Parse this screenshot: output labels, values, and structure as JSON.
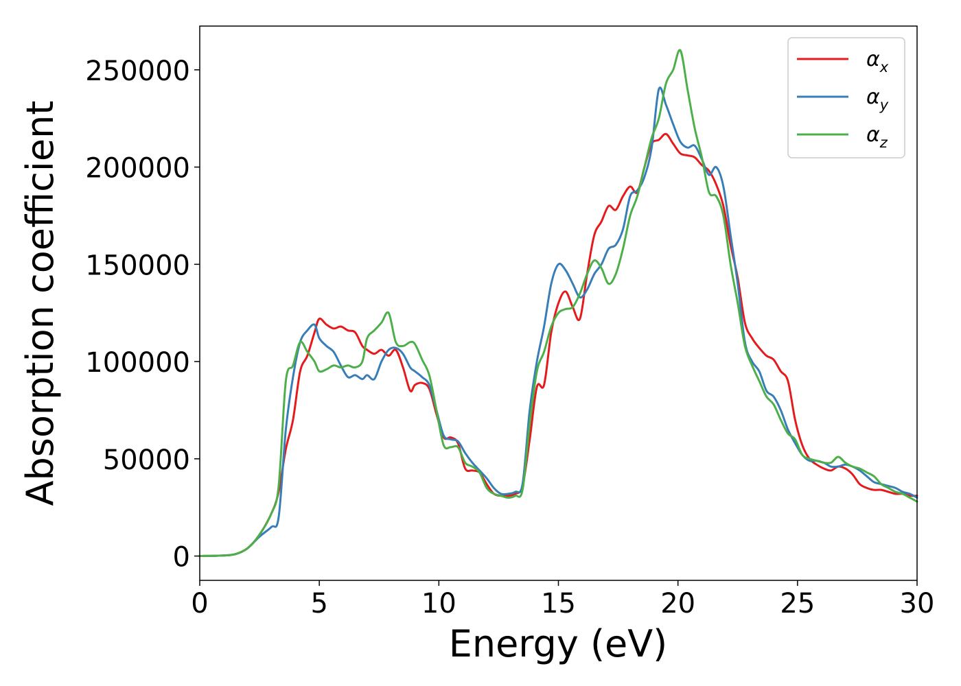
{
  "chart_data": {
    "type": "line",
    "xlabel": "Energy (eV)",
    "ylabel": "Absorption coefficient",
    "xlim": [
      0,
      30
    ],
    "ylim": [
      -12500,
      272500
    ],
    "xticks": [
      0,
      5,
      10,
      15,
      20,
      25,
      30
    ],
    "yticks": [
      0,
      50000,
      100000,
      150000,
      200000,
      250000
    ],
    "xtick_labels": [
      "0",
      "5",
      "10",
      "15",
      "20",
      "25",
      "30"
    ],
    "ytick_labels": [
      "0",
      "50000",
      "100000",
      "150000",
      "200000",
      "250000"
    ],
    "grid": false,
    "legend_position": "top-right",
    "series": [
      {
        "name": "α",
        "subscript": "x",
        "color": "#e41a1c",
        "x": [
          0,
          1,
          1.5,
          2,
          2.5,
          3,
          3.3,
          3.6,
          3.9,
          4.2,
          4.5,
          4.8,
          5.0,
          5.3,
          5.6,
          5.9,
          6.2,
          6.5,
          6.8,
          7.0,
          7.3,
          7.6,
          7.9,
          8.2,
          8.5,
          8.8,
          9.0,
          9.3,
          9.6,
          9.9,
          10.2,
          10.5,
          10.8,
          11.1,
          11.4,
          11.7,
          12.0,
          12.3,
          12.6,
          12.9,
          13.2,
          13.5,
          13.8,
          14.1,
          14.4,
          14.7,
          15.0,
          15.3,
          15.6,
          15.9,
          16.2,
          16.5,
          16.8,
          17.1,
          17.4,
          17.7,
          18.0,
          18.3,
          18.6,
          18.9,
          19.2,
          19.5,
          19.8,
          20.1,
          20.4,
          20.7,
          21.0,
          21.3,
          21.6,
          21.9,
          22.2,
          22.5,
          22.8,
          23.1,
          23.4,
          23.7,
          24.0,
          24.3,
          24.6,
          24.9,
          25.2,
          25.5,
          25.8,
          26.1,
          26.4,
          26.7,
          27.0,
          27.3,
          27.6,
          27.9,
          28.2,
          28.5,
          28.8,
          29.1,
          29.4,
          29.7,
          30
        ],
        "y": [
          0,
          300,
          1000,
          4000,
          11000,
          22000,
          33000,
          55000,
          70000,
          95000,
          103000,
          115000,
          122000,
          119000,
          117000,
          118000,
          116000,
          115000,
          108000,
          106000,
          104000,
          106000,
          103000,
          106000,
          97000,
          85000,
          88000,
          89000,
          86000,
          73000,
          61000,
          61000,
          58000,
          45000,
          44000,
          43000,
          37000,
          32000,
          31000,
          31000,
          32000,
          36000,
          60000,
          87000,
          88000,
          115000,
          130000,
          136000,
          128000,
          122000,
          145000,
          165000,
          172000,
          180000,
          178000,
          185000,
          190000,
          187000,
          200000,
          212000,
          214000,
          217000,
          212000,
          207000,
          206000,
          205000,
          201000,
          198000,
          191000,
          180000,
          160000,
          143000,
          120000,
          112000,
          107000,
          103000,
          101000,
          95000,
          90000,
          70000,
          57000,
          50000,
          47000,
          45000,
          44000,
          46000,
          45000,
          42000,
          37000,
          35000,
          34000,
          34000,
          33000,
          32000,
          32000,
          31000,
          31000
        ]
      },
      {
        "name": "α",
        "subscript": "y",
        "color": "#377eb8",
        "x": [
          0,
          1,
          1.5,
          2,
          2.5,
          3,
          3.3,
          3.6,
          3.9,
          4.2,
          4.5,
          4.8,
          5.0,
          5.3,
          5.6,
          5.9,
          6.2,
          6.5,
          6.8,
          7.0,
          7.3,
          7.6,
          7.9,
          8.2,
          8.5,
          8.8,
          9.0,
          9.3,
          9.6,
          9.9,
          10.2,
          10.5,
          10.8,
          11.1,
          11.4,
          11.7,
          12.0,
          12.3,
          12.6,
          12.9,
          13.2,
          13.5,
          13.8,
          14.1,
          14.4,
          14.7,
          15.0,
          15.3,
          15.6,
          15.9,
          16.2,
          16.5,
          16.8,
          17.1,
          17.4,
          17.7,
          18.0,
          18.3,
          18.6,
          18.9,
          19.2,
          19.5,
          19.8,
          20.1,
          20.4,
          20.7,
          21.0,
          21.3,
          21.6,
          21.9,
          22.2,
          22.5,
          22.8,
          23.1,
          23.4,
          23.7,
          24.0,
          24.3,
          24.6,
          24.9,
          25.2,
          25.5,
          25.8,
          26.1,
          26.4,
          26.7,
          27.0,
          27.3,
          27.6,
          27.9,
          28.2,
          28.5,
          28.8,
          29.1,
          29.4,
          29.7,
          30
        ],
        "y": [
          0,
          300,
          1000,
          4000,
          10000,
          15000,
          20000,
          65000,
          92000,
          110000,
          116000,
          119000,
          112000,
          108000,
          105000,
          98000,
          92000,
          93000,
          91000,
          93000,
          91000,
          100000,
          106000,
          107000,
          104000,
          97000,
          95000,
          92000,
          88000,
          75000,
          62000,
          60000,
          59000,
          53000,
          48000,
          44000,
          40000,
          35000,
          32000,
          32000,
          33000,
          37000,
          75000,
          100000,
          118000,
          140000,
          150000,
          147000,
          140000,
          133000,
          137000,
          145000,
          150000,
          158000,
          160000,
          168000,
          185000,
          188000,
          195000,
          210000,
          240000,
          232000,
          222000,
          213000,
          210000,
          211000,
          204000,
          196000,
          200000,
          190000,
          165000,
          140000,
          110000,
          100000,
          95000,
          85000,
          82000,
          75000,
          65000,
          58000,
          52000,
          49000,
          49000,
          48000,
          46000,
          46000,
          47000,
          46000,
          44000,
          41000,
          38000,
          37000,
          36000,
          35000,
          33000,
          32000,
          30000
        ]
      },
      {
        "name": "α",
        "subscript": "z",
        "color": "#4daf4a",
        "x": [
          0,
          1,
          1.5,
          2,
          2.5,
          3,
          3.3,
          3.6,
          3.9,
          4.2,
          4.5,
          4.8,
          5.0,
          5.3,
          5.6,
          5.9,
          6.2,
          6.5,
          6.8,
          7.0,
          7.3,
          7.6,
          7.9,
          8.2,
          8.5,
          8.8,
          9.0,
          9.3,
          9.6,
          9.9,
          10.2,
          10.5,
          10.8,
          11.1,
          11.4,
          11.7,
          12.0,
          12.3,
          12.6,
          12.9,
          13.2,
          13.5,
          13.8,
          14.1,
          14.4,
          14.7,
          15.0,
          15.3,
          15.6,
          15.9,
          16.2,
          16.5,
          16.8,
          17.1,
          17.4,
          17.7,
          18.0,
          18.3,
          18.6,
          18.9,
          19.2,
          19.5,
          19.8,
          20.1,
          20.4,
          20.7,
          21.0,
          21.3,
          21.6,
          21.9,
          22.2,
          22.5,
          22.8,
          23.1,
          23.4,
          23.7,
          24.0,
          24.3,
          24.6,
          24.9,
          25.2,
          25.5,
          25.8,
          26.1,
          26.4,
          26.7,
          27.0,
          27.3,
          27.6,
          27.9,
          28.2,
          28.5,
          28.8,
          29.1,
          29.4,
          29.7,
          30
        ],
        "y": [
          0,
          300,
          1000,
          4000,
          11000,
          22000,
          36000,
          90000,
          98000,
          110000,
          105000,
          100000,
          95000,
          96000,
          98000,
          97000,
          98000,
          97000,
          100000,
          112000,
          116000,
          120000,
          125000,
          110000,
          108000,
          110000,
          109000,
          101000,
          93000,
          75000,
          57000,
          56000,
          56000,
          48000,
          46000,
          43000,
          35000,
          32000,
          31000,
          30000,
          31000,
          34000,
          68000,
          95000,
          105000,
          118000,
          125000,
          127000,
          128000,
          135000,
          145000,
          152000,
          148000,
          140000,
          145000,
          158000,
          175000,
          185000,
          200000,
          215000,
          225000,
          243000,
          250000,
          260000,
          240000,
          220000,
          205000,
          187000,
          185000,
          175000,
          150000,
          130000,
          108000,
          98000,
          90000,
          82000,
          78000,
          70000,
          63000,
          60000,
          52000,
          50000,
          49000,
          48000,
          48000,
          51000,
          48000,
          46000,
          45000,
          43000,
          41000,
          37000,
          35000,
          33000,
          32000,
          30000,
          28000
        ]
      }
    ]
  }
}
